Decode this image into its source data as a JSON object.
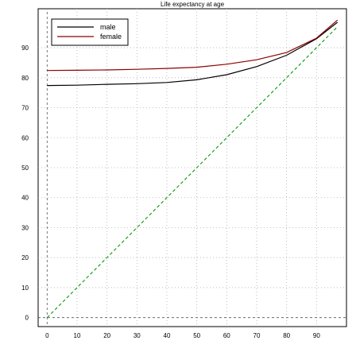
{
  "chart_data": {
    "type": "line",
    "title": "Life expectancy at age",
    "xlabel": "",
    "ylabel": "",
    "xlim": [
      -3,
      100
    ],
    "ylim": [
      -3,
      103
    ],
    "x_ticks": [
      0,
      10,
      20,
      30,
      40,
      50,
      60,
      70,
      80,
      90
    ],
    "y_ticks": [
      0,
      10,
      20,
      30,
      40,
      50,
      60,
      70,
      80,
      90
    ],
    "grid": true,
    "legend_position": "top-left",
    "x": [
      0,
      10,
      20,
      30,
      40,
      50,
      60,
      70,
      80,
      90,
      97
    ],
    "series": [
      {
        "name": "male",
        "color": "#000000",
        "style": "solid",
        "values": [
          77.4,
          77.5,
          77.8,
          78.0,
          78.4,
          79.3,
          81.0,
          83.7,
          87.5,
          93.0,
          98.5
        ]
      },
      {
        "name": "female",
        "color": "#8b0000",
        "style": "solid",
        "values": [
          82.4,
          82.5,
          82.6,
          82.8,
          83.1,
          83.5,
          84.5,
          86.0,
          88.4,
          93.2,
          99.2
        ]
      },
      {
        "name": "",
        "color": "#1aa01a",
        "style": "dashed",
        "values": [
          0,
          10,
          20,
          30,
          40,
          50,
          60,
          70,
          80,
          90,
          97
        ]
      }
    ]
  }
}
